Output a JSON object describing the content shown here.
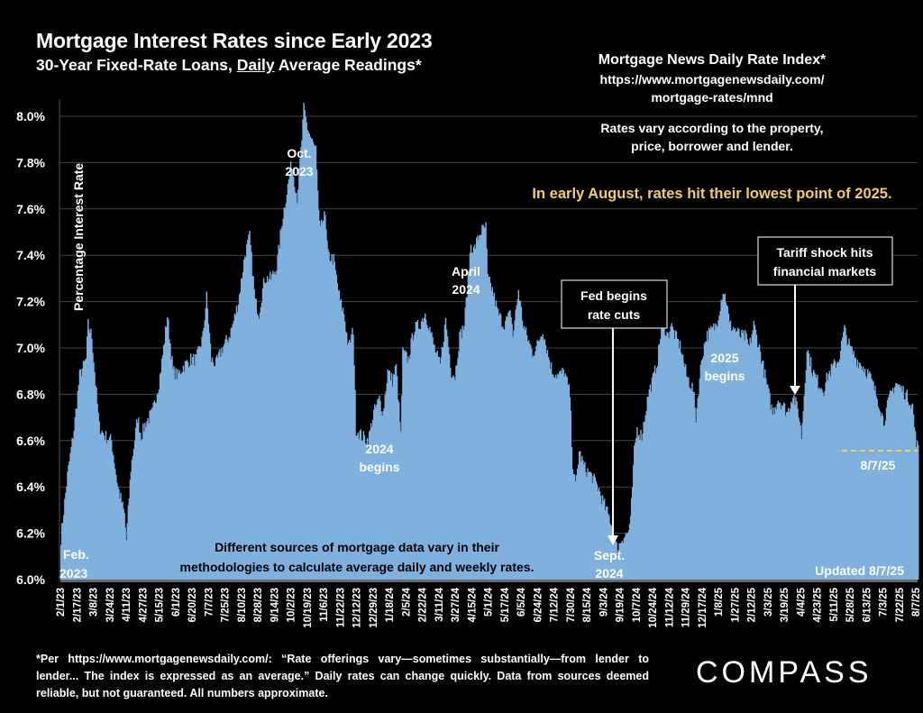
{
  "header": {
    "title": "Mortgage Interest Rates since Early 2023",
    "subtitle_pre": "30-Year Fixed-Rate Loans, ",
    "subtitle_underlined": "Daily",
    "subtitle_post": " Average Readings*"
  },
  "source": {
    "title": "Mortgage News Daily Rate Index*",
    "url_line1": "https://www.mortgagenewsdaily.com/",
    "url_line2": "mortgage-rates/mnd",
    "note_line1": "Rates vary according to the property,",
    "note_line2": "price, borrower and lender."
  },
  "headline": "In early August, rates hit their lowest point of 2025.",
  "headline_color": "#f2cf5a",
  "footnote": "*Per https://www.mortgagenewsdaily.com/: “Rate offerings vary—sometimes substantially—from lender to lender... The index is expressed as an average.” Daily rates can change quickly. Data from sources deemed reliable, but not guaranteed. All numbers approximate.",
  "logo": "COMPASS",
  "chart_data": {
    "type": "area",
    "title": "Mortgage Interest Rates since Early 2023",
    "ylabel": "Percentage Interest  Rate",
    "xlabel": "",
    "ylim": [
      6.0,
      8.0
    ],
    "yticks": [
      "6.0%",
      "6.2%",
      "6.4%",
      "6.6%",
      "6.8%",
      "7.0%",
      "7.2%",
      "7.4%",
      "7.6%",
      "7.8%",
      "8.0%"
    ],
    "ytick_values": [
      6.0,
      6.2,
      6.4,
      6.6,
      6.8,
      7.0,
      7.2,
      7.4,
      7.6,
      7.8,
      8.0
    ],
    "grid": true,
    "fill_color": "#7fb0de",
    "xticks": [
      "2/1/23",
      "2/17/23",
      "3/8/23",
      "3/24/23",
      "4/11/23",
      "4/27/23",
      "5/15/23",
      "6/1/23",
      "6/20/23",
      "7/7/23",
      "7/25/23",
      "8/10/23",
      "8/28/23",
      "9/14/23",
      "10/2/23",
      "10/19/23",
      "11/6/23",
      "11/22/23",
      "12/12/23",
      "12/29/23",
      "1/18/24",
      "2/5/24",
      "2/22/24",
      "3/11/24",
      "3/27/24",
      "4/15/24",
      "5/1/24",
      "5/17/24",
      "6/5/24",
      "6/24/24",
      "7/12/24",
      "7/30/24",
      "8/15/24",
      "9/3/24",
      "9/19/24",
      "10/7/24",
      "10/24/24",
      "11/12/24",
      "11/29/24",
      "12/17/24",
      "1/8/25",
      "1/27/25",
      "2/12/25",
      "3/3/25",
      "3/19/25",
      "4/4/25",
      "4/23/25",
      "5/11/25",
      "5/28/25",
      "6/13/25",
      "7/3/25",
      "7/22/25",
      "8/7/25"
    ],
    "series": [
      {
        "name": "MND 30-Year Fixed Daily Rate",
        "points": [
          [
            "2/1/23",
            6.18
          ],
          [
            "2/8/23",
            6.45
          ],
          [
            "2/15/23",
            6.65
          ],
          [
            "2/21/23",
            6.88
          ],
          [
            "2/28/23",
            6.95
          ],
          [
            "3/2/23",
            7.1
          ],
          [
            "3/6/23",
            7.05
          ],
          [
            "3/10/23",
            6.85
          ],
          [
            "3/14/23",
            6.66
          ],
          [
            "3/20/23",
            6.62
          ],
          [
            "3/27/23",
            6.6
          ],
          [
            "4/3/23",
            6.4
          ],
          [
            "4/6/23",
            6.35
          ],
          [
            "4/10/23",
            6.28
          ],
          [
            "4/12/23",
            6.17
          ],
          [
            "4/17/23",
            6.48
          ],
          [
            "4/24/23",
            6.7
          ],
          [
            "4/28/23",
            6.62
          ],
          [
            "5/3/23",
            6.68
          ],
          [
            "5/10/23",
            6.72
          ],
          [
            "5/17/23",
            6.85
          ],
          [
            "5/22/23",
            7.0
          ],
          [
            "5/26/23",
            7.14
          ],
          [
            "6/1/23",
            6.9
          ],
          [
            "6/6/23",
            6.88
          ],
          [
            "6/12/23",
            6.92
          ],
          [
            "6/20/23",
            6.95
          ],
          [
            "6/26/23",
            6.95
          ],
          [
            "7/3/23",
            7.05
          ],
          [
            "7/7/23",
            7.22
          ],
          [
            "7/12/23",
            6.95
          ],
          [
            "7/17/23",
            6.93
          ],
          [
            "7/24/23",
            7.0
          ],
          [
            "7/31/23",
            7.05
          ],
          [
            "8/4/23",
            7.1
          ],
          [
            "8/10/23",
            7.2
          ],
          [
            "8/17/23",
            7.4
          ],
          [
            "8/22/23",
            7.48
          ],
          [
            "8/28/23",
            7.2
          ],
          [
            "9/1/23",
            7.15
          ],
          [
            "9/7/23",
            7.3
          ],
          [
            "9/14/23",
            7.3
          ],
          [
            "9/20/23",
            7.35
          ],
          [
            "9/26/23",
            7.55
          ],
          [
            "10/2/23",
            7.7
          ],
          [
            "10/6/23",
            7.8
          ],
          [
            "10/12/23",
            7.65
          ],
          [
            "10/17/23",
            7.9
          ],
          [
            "10/19/23",
            8.03
          ],
          [
            "10/23/23",
            7.95
          ],
          [
            "10/27/23",
            7.9
          ],
          [
            "11/1/23",
            7.85
          ],
          [
            "11/3/23",
            7.65
          ],
          [
            "11/6/23",
            7.5
          ],
          [
            "11/10/23",
            7.6
          ],
          [
            "11/14/23",
            7.4
          ],
          [
            "11/20/23",
            7.38
          ],
          [
            "11/27/23",
            7.2
          ],
          [
            "12/1/23",
            7.15
          ],
          [
            "12/6/23",
            7.0
          ],
          [
            "12/11/23",
            7.08
          ],
          [
            "12/14/23",
            6.65
          ],
          [
            "12/20/23",
            6.62
          ],
          [
            "12/27/23",
            6.6
          ],
          [
            "1/2/24",
            6.72
          ],
          [
            "1/8/24",
            6.78
          ],
          [
            "1/12/24",
            6.72
          ],
          [
            "1/17/24",
            6.9
          ],
          [
            "1/22/24",
            6.86
          ],
          [
            "1/26/24",
            6.92
          ],
          [
            "1/31/24",
            6.62
          ],
          [
            "2/2/24",
            6.98
          ],
          [
            "2/8/24",
            6.95
          ],
          [
            "2/14/24",
            7.08
          ],
          [
            "2/20/24",
            7.1
          ],
          [
            "2/26/24",
            7.15
          ],
          [
            "3/1/24",
            7.1
          ],
          [
            "3/7/24",
            7.0
          ],
          [
            "3/13/24",
            6.92
          ],
          [
            "3/19/24",
            7.12
          ],
          [
            "3/25/24",
            6.9
          ],
          [
            "3/29/24",
            6.88
          ],
          [
            "4/3/24",
            7.05
          ],
          [
            "4/8/24",
            7.1
          ],
          [
            "4/10/24",
            7.2
          ],
          [
            "4/15/24",
            7.45
          ],
          [
            "4/18/24",
            7.42
          ],
          [
            "4/25/24",
            7.5
          ],
          [
            "5/1/24",
            7.52
          ],
          [
            "5/3/24",
            7.3
          ],
          [
            "5/8/24",
            7.25
          ],
          [
            "5/14/24",
            7.15
          ],
          [
            "5/20/24",
            7.1
          ],
          [
            "5/28/24",
            7.15
          ],
          [
            "5/30/24",
            7.05
          ],
          [
            "6/5/24",
            7.25
          ],
          [
            "6/10/24",
            7.1
          ],
          [
            "6/14/24",
            7.05
          ],
          [
            "6/20/24",
            6.98
          ],
          [
            "6/24/24",
            7.0
          ],
          [
            "7/1/24",
            7.08
          ],
          [
            "7/5/24",
            7.0
          ],
          [
            "7/11/24",
            6.9
          ],
          [
            "7/18/24",
            6.88
          ],
          [
            "7/24/24",
            6.9
          ],
          [
            "7/30/24",
            6.8
          ],
          [
            "8/2/24",
            6.5
          ],
          [
            "8/5/24",
            6.4
          ],
          [
            "8/9/24",
            6.55
          ],
          [
            "8/15/24",
            6.48
          ],
          [
            "8/22/24",
            6.45
          ],
          [
            "8/29/24",
            6.4
          ],
          [
            "9/5/24",
            6.32
          ],
          [
            "9/12/24",
            6.25
          ],
          [
            "9/17/24",
            6.15
          ],
          [
            "9/19/24",
            6.13
          ],
          [
            "9/24/24",
            6.18
          ],
          [
            "9/30/24",
            6.2
          ],
          [
            "10/3/24",
            6.25
          ],
          [
            "10/7/24",
            6.55
          ],
          [
            "10/10/24",
            6.65
          ],
          [
            "10/15/24",
            6.62
          ],
          [
            "10/22/24",
            6.8
          ],
          [
            "10/28/24",
            6.88
          ],
          [
            "11/1/24",
            6.95
          ],
          [
            "11/6/24",
            7.12
          ],
          [
            "11/12/24",
            7.05
          ],
          [
            "11/15/24",
            7.1
          ],
          [
            "11/20/24",
            7.05
          ],
          [
            "11/26/24",
            7.0
          ],
          [
            "12/2/24",
            6.88
          ],
          [
            "12/9/24",
            6.82
          ],
          [
            "12/12/24",
            6.7
          ],
          [
            "12/18/24",
            6.95
          ],
          [
            "12/23/24",
            7.05
          ],
          [
            "12/30/24",
            7.08
          ],
          [
            "1/3/25",
            7.1
          ],
          [
            "1/10/25",
            7.25
          ],
          [
            "1/14/25",
            7.2
          ],
          [
            "1/17/25",
            7.1
          ],
          [
            "1/23/25",
            7.08
          ],
          [
            "1/29/25",
            7.05
          ],
          [
            "2/3/25",
            7.05
          ],
          [
            "2/7/25",
            7.0
          ],
          [
            "2/12/25",
            7.1
          ],
          [
            "2/18/25",
            7.0
          ],
          [
            "2/24/25",
            6.88
          ],
          [
            "2/28/25",
            6.8
          ],
          [
            "3/4/25",
            6.72
          ],
          [
            "3/10/25",
            6.78
          ],
          [
            "3/14/25",
            6.76
          ],
          [
            "3/20/25",
            6.72
          ],
          [
            "3/26/25",
            6.8
          ],
          [
            "4/1/25",
            6.72
          ],
          [
            "4/4/25",
            6.62
          ],
          [
            "4/7/25",
            6.8
          ],
          [
            "4/10/25",
            7.0
          ],
          [
            "4/16/25",
            6.9
          ],
          [
            "4/22/25",
            6.85
          ],
          [
            "4/28/25",
            6.82
          ],
          [
            "5/2/25",
            6.88
          ],
          [
            "5/8/25",
            6.92
          ],
          [
            "5/14/25",
            6.95
          ],
          [
            "5/20/25",
            7.08
          ],
          [
            "5/26/25",
            7.0
          ],
          [
            "6/2/25",
            6.95
          ],
          [
            "6/9/25",
            6.92
          ],
          [
            "6/16/25",
            6.88
          ],
          [
            "6/23/25",
            6.8
          ],
          [
            "6/27/25",
            6.75
          ],
          [
            "7/1/25",
            6.68
          ],
          [
            "7/7/25",
            6.78
          ],
          [
            "7/14/25",
            6.85
          ],
          [
            "7/21/25",
            6.82
          ],
          [
            "7/28/25",
            6.78
          ],
          [
            "8/1/25",
            6.75
          ],
          [
            "8/4/25",
            6.62
          ],
          [
            "8/7/25",
            6.56
          ]
        ]
      }
    ],
    "annotations": [
      {
        "id": "feb-2023",
        "line1": "Feb.",
        "line2": "2023"
      },
      {
        "id": "oct-2023",
        "line1": "Oct.",
        "line2": "2023"
      },
      {
        "id": "begins-2024",
        "line1": "2024",
        "line2": "begins"
      },
      {
        "id": "april-2024",
        "line1": "April",
        "line2": "2024"
      },
      {
        "id": "fed-cuts",
        "line1": "Fed begins",
        "line2": "rate cuts"
      },
      {
        "id": "sept-2024",
        "line1": "Sept.",
        "line2": "2024"
      },
      {
        "id": "begins-2025",
        "line1": "2025",
        "line2": "begins"
      },
      {
        "id": "tariff",
        "line1": "Tariff shock hits",
        "line2": "financial markets"
      },
      {
        "id": "latest",
        "line1": "8/7/25",
        "line2": ""
      },
      {
        "id": "updated",
        "line1": "Updated 8/7/25",
        "line2": ""
      }
    ],
    "latest_value": 6.56,
    "latest_date": "8/7/25",
    "methodology_note_line1": "Different sources of mortgage data vary in their",
    "methodology_note_line2": "methodologies to calculate average daily and weekly rates."
  }
}
